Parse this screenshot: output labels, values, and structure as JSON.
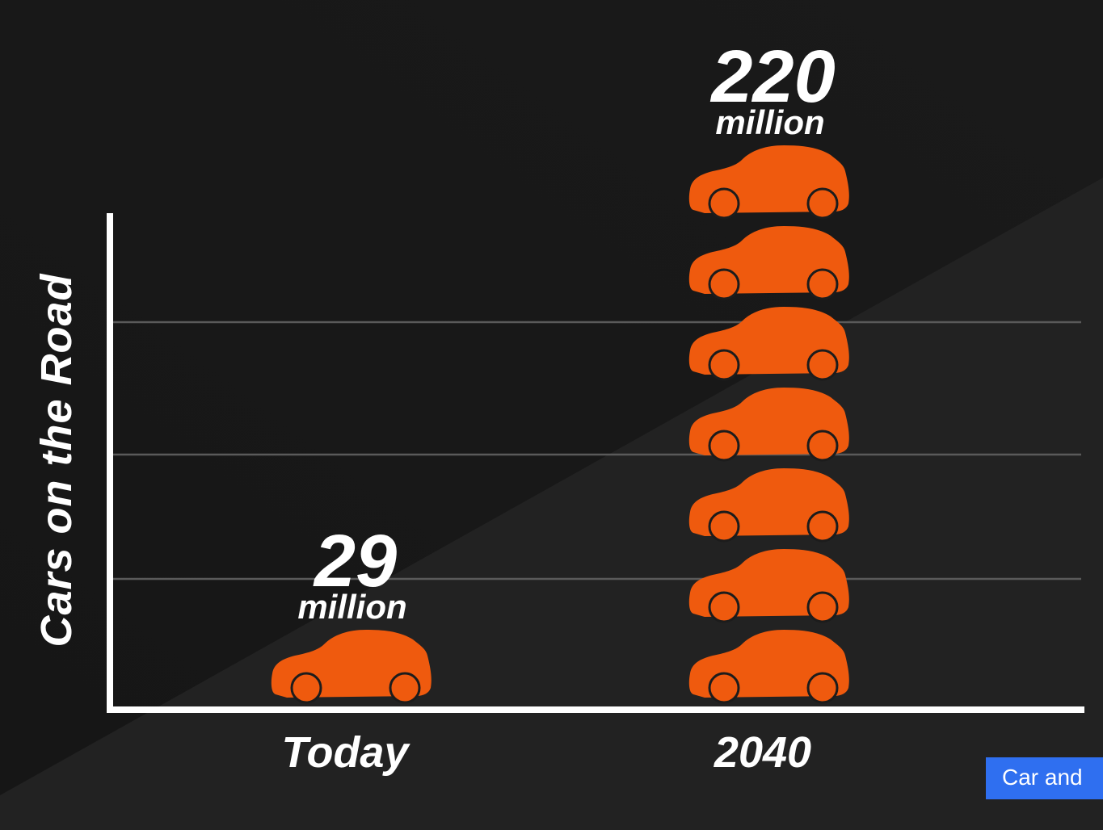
{
  "chart_data": {
    "type": "bar",
    "categories": [
      "Today",
      "2040"
    ],
    "values": [
      29,
      220
    ],
    "value_labels": [
      {
        "number": "29",
        "unit": "million"
      },
      {
        "number": "220",
        "unit": "million"
      }
    ],
    "icons_per_bar": [
      1,
      7
    ],
    "icon": "car-icon",
    "ylabel": "Cars on the Road",
    "xlabel": "",
    "grid": true,
    "colors": {
      "bar": "#EF5A0E",
      "background": "#161616",
      "text": "#FFFFFF",
      "axis": "#FFFFFF",
      "grid": "#5A5A5A"
    }
  },
  "badge": {
    "text": "Car and",
    "color": "#2F6FF0"
  }
}
